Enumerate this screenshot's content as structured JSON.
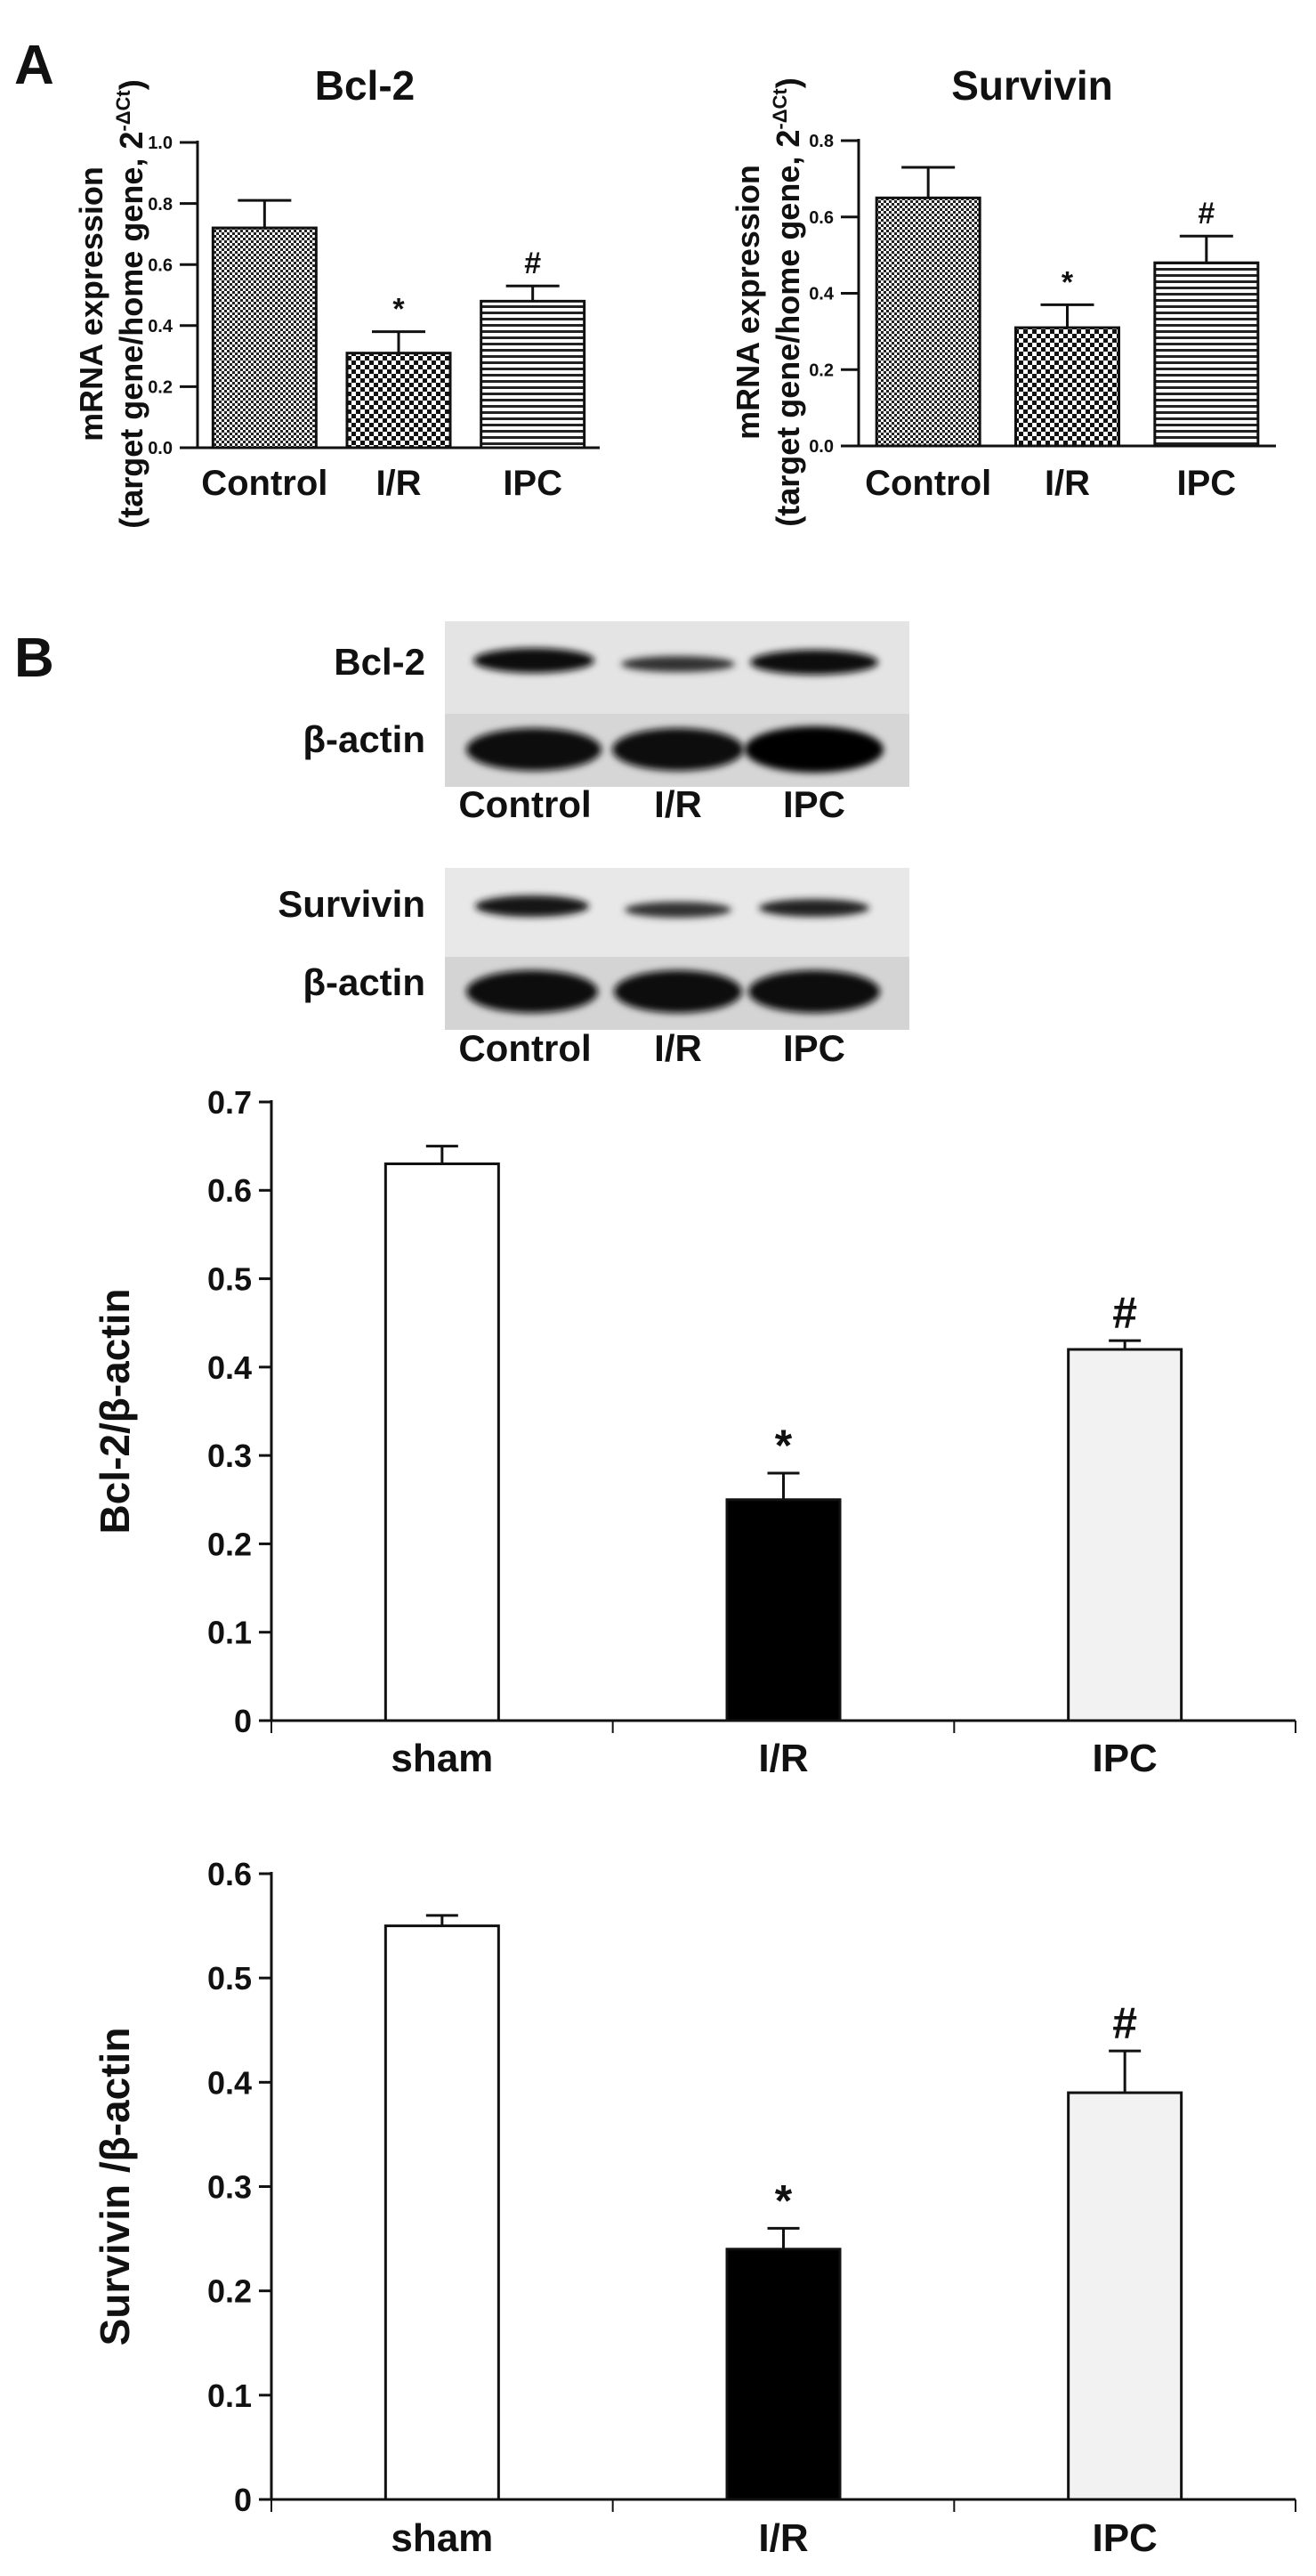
{
  "panel_labels": {
    "a": "A",
    "b": "B"
  },
  "blots": {
    "bcl2": {
      "row1_label": "Bcl-2",
      "row2_label": "β-actin",
      "lanes": [
        "Control",
        "I/R",
        "IPC"
      ]
    },
    "survivin": {
      "row1_label": "Survivin",
      "row2_label": "β-actin",
      "lanes": [
        "Control",
        "I/R",
        "IPC"
      ]
    }
  },
  "chart_data": [
    {
      "type": "bar",
      "title": "Bcl-2",
      "ylabel_line1": "mRNA expression",
      "ylabel_line2": "(target gene/home gene, 2",
      "ylabel_sup": "-ΔCt",
      "ylabel_close": ")",
      "categories": [
        "Control",
        "I/R",
        "IPC"
      ],
      "values": [
        0.72,
        0.31,
        0.48
      ],
      "errors": [
        0.09,
        0.07,
        0.05
      ],
      "annotations": [
        "",
        "*",
        "#"
      ],
      "patterns": [
        "fine-check",
        "check",
        "horizontal-lines"
      ],
      "ylim": [
        0,
        1.0
      ],
      "yticks": [
        "0.0",
        "0.2",
        "0.4",
        "0.6",
        "0.8",
        "1.0"
      ]
    },
    {
      "type": "bar",
      "title": "Survivin",
      "ylabel_line1": "mRNA expression",
      "ylabel_line2": "(target gene/home gene, 2",
      "ylabel_sup": "-ΔCt",
      "ylabel_close": ")",
      "categories": [
        "Control",
        "I/R",
        "IPC"
      ],
      "values": [
        0.65,
        0.31,
        0.48
      ],
      "errors": [
        0.08,
        0.06,
        0.07
      ],
      "annotations": [
        "",
        "*",
        "#"
      ],
      "patterns": [
        "fine-check",
        "check",
        "horizontal-lines"
      ],
      "ylim": [
        0,
        0.8
      ],
      "yticks": [
        "0.0",
        "0.2",
        "0.4",
        "0.6",
        "0.8"
      ]
    },
    {
      "type": "bar",
      "title": "",
      "ylabel": "Bcl-2/β-actin",
      "categories": [
        "sham",
        "I/R",
        "IPC"
      ],
      "values": [
        0.63,
        0.25,
        0.42
      ],
      "errors": [
        0.02,
        0.03,
        0.01
      ],
      "annotations": [
        "",
        "*",
        "#"
      ],
      "colors": [
        "#ffffff",
        "#000000",
        "#f2f2f2"
      ],
      "ylim": [
        0,
        0.7
      ],
      "yticks": [
        "0",
        "0.1",
        "0.2",
        "0.3",
        "0.4",
        "0.5",
        "0.6",
        "0.7"
      ]
    },
    {
      "type": "bar",
      "title": "",
      "ylabel": "Survivin /β-actin",
      "categories": [
        "sham",
        "I/R",
        "IPC"
      ],
      "values": [
        0.55,
        0.24,
        0.39
      ],
      "errors": [
        0.01,
        0.02,
        0.04
      ],
      "annotations": [
        "",
        "*",
        "#"
      ],
      "colors": [
        "#ffffff",
        "#000000",
        "#f2f2f2"
      ],
      "ylim": [
        0,
        0.6
      ],
      "yticks": [
        "0",
        "0.1",
        "0.2",
        "0.3",
        "0.4",
        "0.5",
        "0.6"
      ]
    }
  ]
}
